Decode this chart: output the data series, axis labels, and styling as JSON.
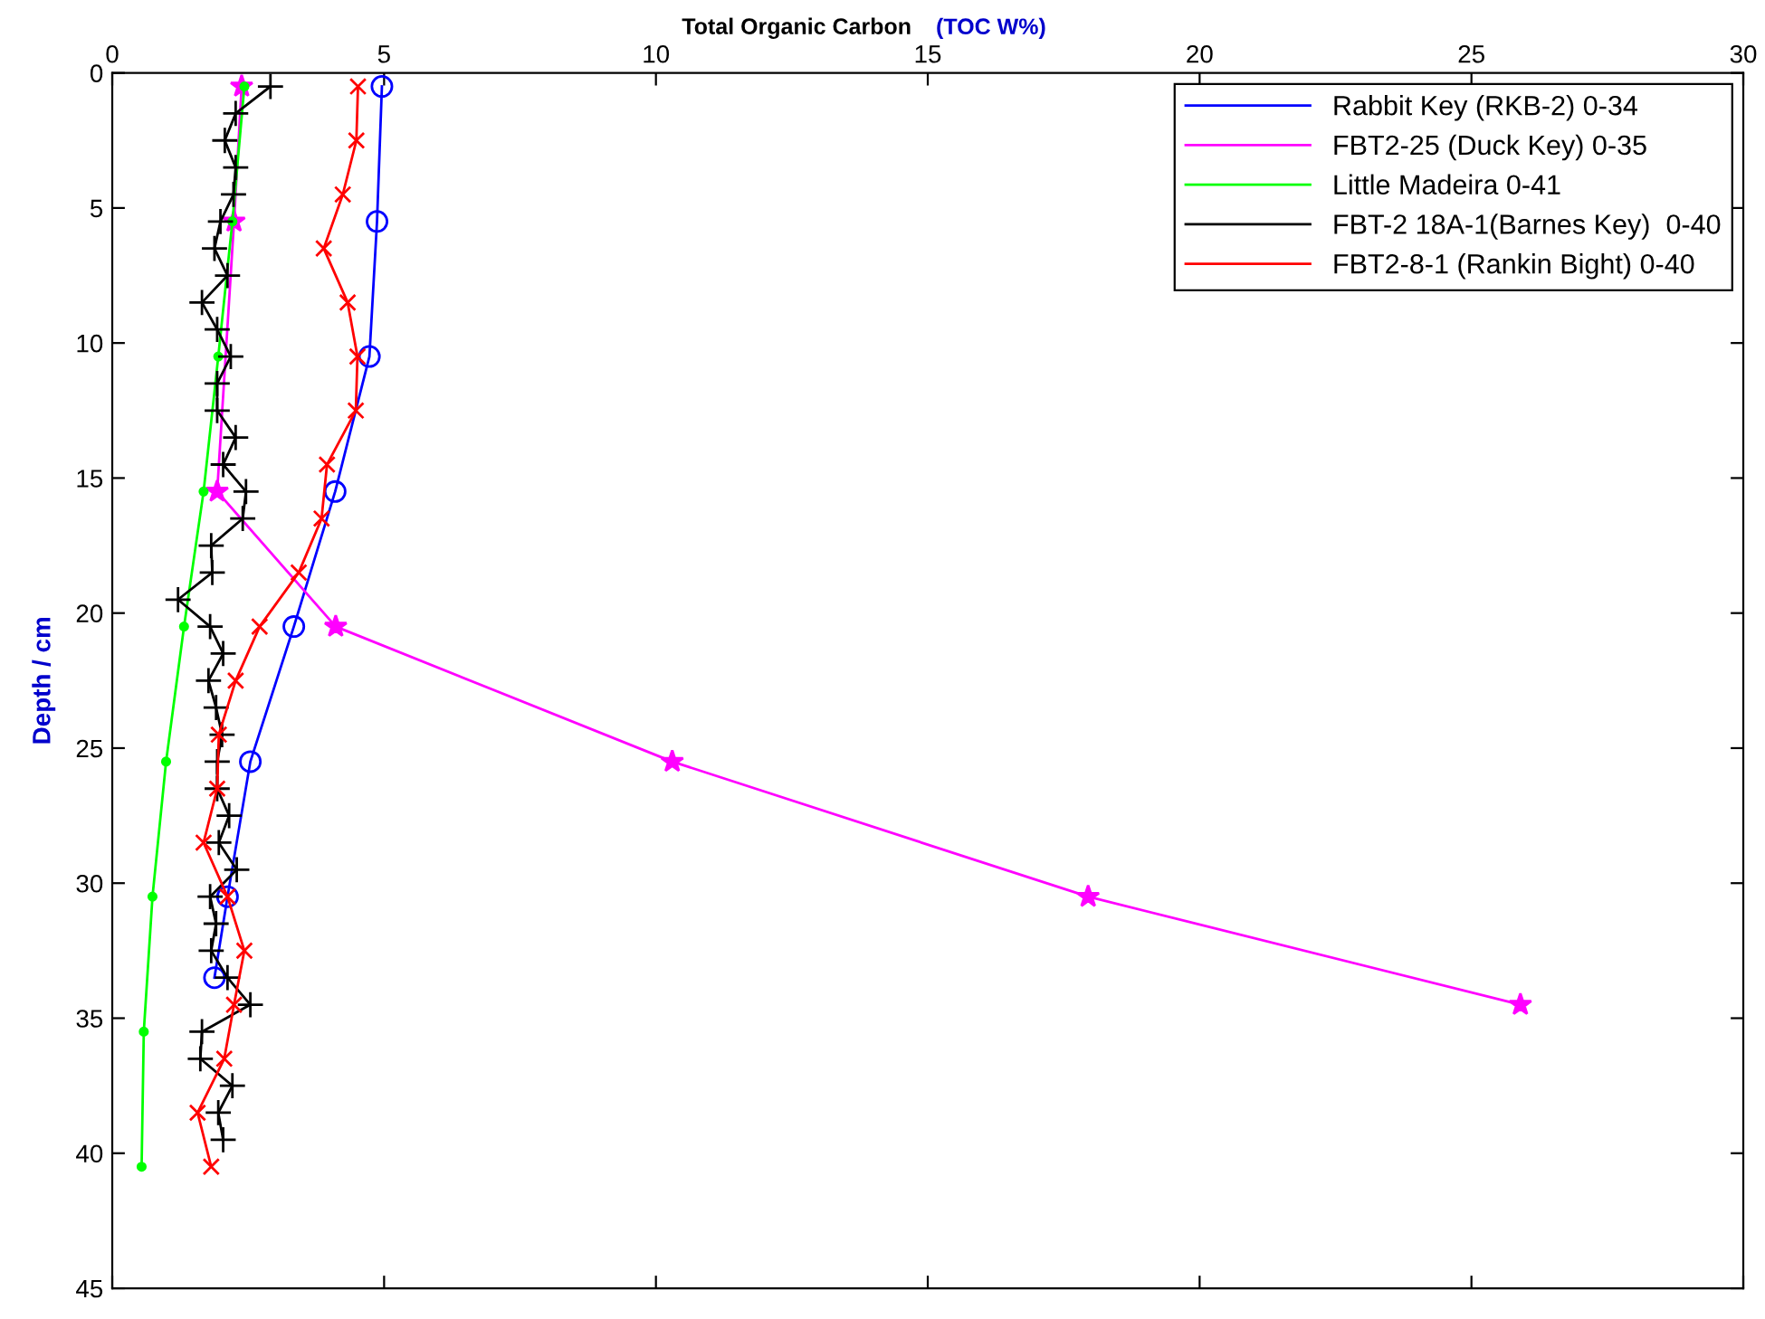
{
  "chart_data": {
    "type": "line",
    "title": "Total Organic Carbon",
    "xlabel": "(TOC W%)",
    "ylabel": "Depth / cm",
    "xlim": [
      0,
      30
    ],
    "xticks": [
      0,
      5,
      10,
      15,
      20,
      25,
      30
    ],
    "ylim": [
      45,
      0
    ],
    "yticks": [
      0,
      5,
      10,
      15,
      20,
      25,
      30,
      35,
      40,
      45
    ],
    "grid": false,
    "legend": "top right",
    "line_style": "solid",
    "series": [
      {
        "name": "Rabbit Key (RKB-2) 0-34",
        "color": "#0000ff",
        "marker": "circle",
        "x": [
          4.96,
          4.87,
          4.73,
          4.1,
          3.34,
          2.54,
          2.12,
          1.88
        ],
        "values": [
          0.5,
          5.5,
          10.5,
          15.5,
          20.5,
          25.5,
          30.5,
          33.5
        ]
      },
      {
        "name": "FBT2-25 (Duck Key) 0-35",
        "color": "#ff00ff",
        "marker": "star",
        "x": [
          2.38,
          2.24,
          null,
          1.93,
          4.11,
          10.3,
          17.95,
          25.9
        ],
        "values": [
          0.5,
          5.5,
          null,
          15.5,
          20.5,
          25.5,
          30.5,
          34.5
        ]
      },
      {
        "name": "Little Madeira 0-41",
        "color": "#00ff00",
        "marker": "point",
        "x": [
          2.43,
          2.21,
          1.95,
          1.68,
          1.32,
          0.99,
          0.74,
          0.58,
          0.54
        ],
        "values": [
          0.5,
          5.5,
          10.5,
          15.5,
          20.5,
          25.5,
          30.5,
          35.5,
          40.5
        ]
      },
      {
        "name": "FBT-2 18A-1(Barnes Key)  0-40",
        "color": "#000000",
        "marker": "plus",
        "x": [
          2.91,
          2.27,
          2.07,
          2.27,
          2.23,
          1.99,
          1.88,
          2.12,
          1.65,
          1.93,
          2.18,
          1.93,
          1.93,
          2.27,
          2.04,
          2.46,
          2.4,
          1.82,
          1.84,
          1.21,
          1.8,
          2.04,
          1.77,
          1.91,
          2.02,
          1.93,
          1.93,
          2.15,
          1.96,
          2.29,
          1.8,
          1.91,
          1.82,
          2.12,
          2.54,
          1.65,
          1.62,
          2.21,
          1.95,
          2.04
        ],
        "values": [
          0.5,
          1.5,
          2.5,
          3.5,
          4.5,
          5.5,
          6.5,
          7.5,
          8.5,
          9.5,
          10.5,
          11.5,
          12.5,
          13.5,
          14.5,
          15.5,
          16.5,
          17.5,
          18.5,
          19.5,
          20.5,
          21.5,
          22.5,
          23.5,
          24.5,
          25.5,
          26.5,
          27.5,
          28.5,
          29.5,
          30.5,
          31.5,
          32.5,
          33.5,
          34.5,
          35.5,
          36.5,
          37.5,
          38.5,
          39.5
        ]
      },
      {
        "name": "FBT2-8-1 (Rankin Bight) 0-40",
        "color": "#ff0000",
        "marker": "cross",
        "x": [
          4.52,
          4.49,
          4.24,
          3.89,
          4.33,
          4.51,
          4.48,
          3.95,
          3.85,
          3.43,
          2.71,
          2.27,
          1.96,
          1.93,
          1.68,
          2.12,
          2.43,
          2.24,
          2.06,
          1.57,
          1.82
        ],
        "values": [
          0.5,
          2.5,
          4.5,
          6.5,
          8.5,
          10.5,
          12.5,
          14.5,
          16.5,
          18.5,
          20.5,
          22.5,
          24.5,
          26.5,
          28.5,
          30.5,
          32.5,
          34.5,
          36.5,
          38.5,
          40.5
        ]
      }
    ]
  }
}
